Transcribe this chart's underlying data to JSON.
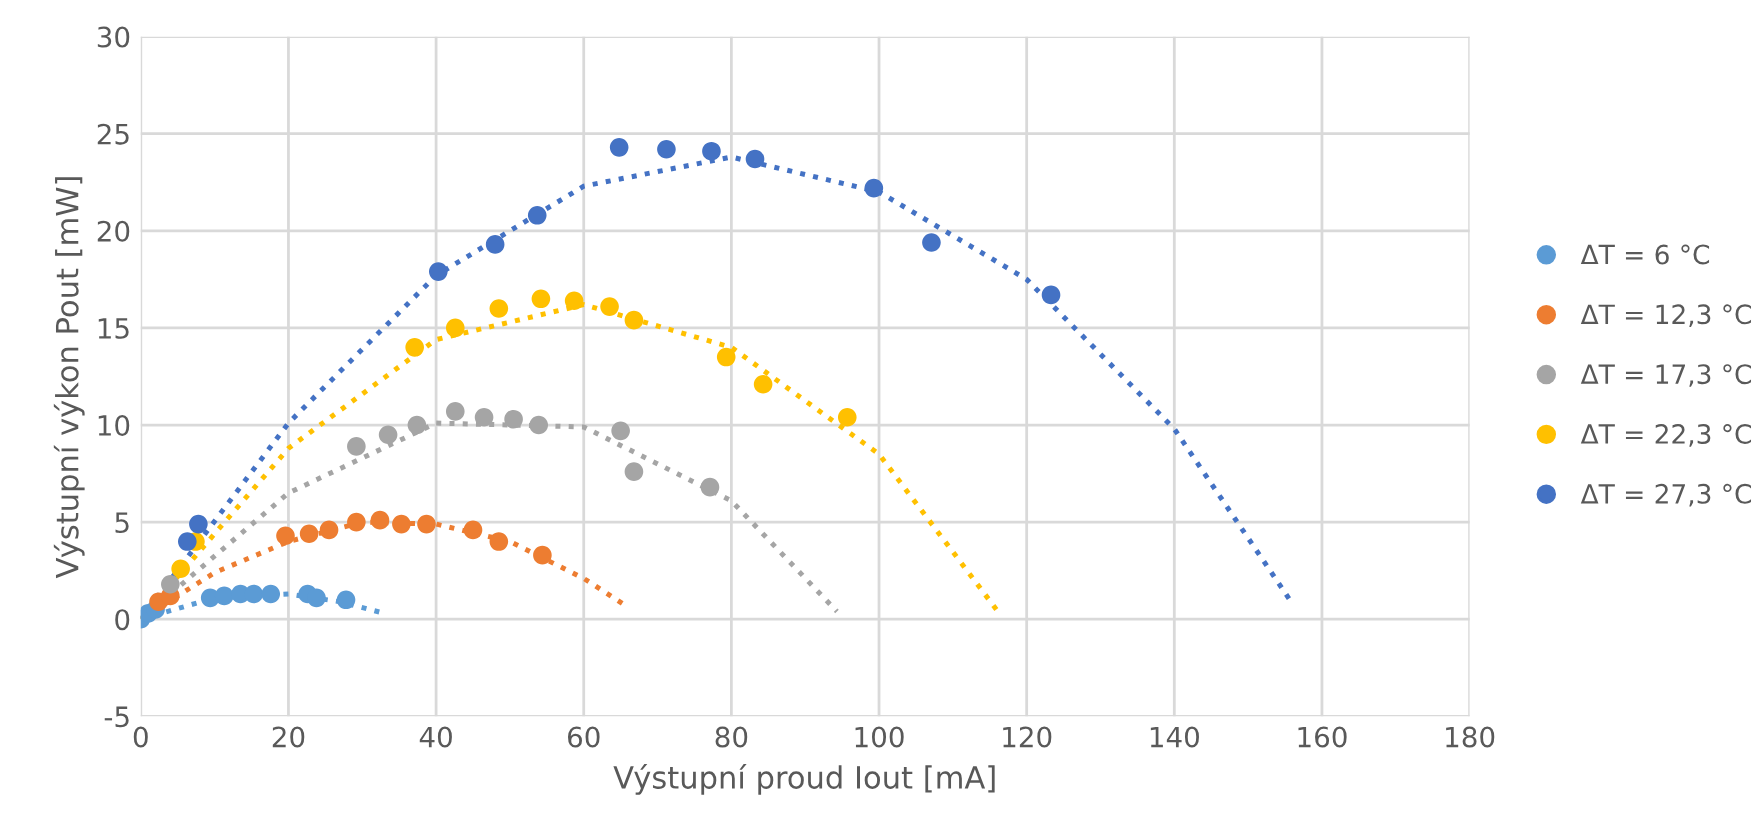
{
  "chart_data": {
    "type": "scatter",
    "xlabel": "Výstupní proud Iout [mA]",
    "ylabel": "Výstupní výkon Pout [mW]",
    "xlim": [
      0,
      180
    ],
    "xticks": [
      0,
      20,
      40,
      60,
      80,
      100,
      120,
      140,
      160,
      180
    ],
    "ylim": [
      -5,
      30
    ],
    "yticks": [
      -5,
      0,
      5,
      10,
      15,
      20,
      25,
      30
    ],
    "grid": true,
    "legend": "right",
    "marker": "circle",
    "series": [
      {
        "name": "ΔT = 6 °C",
        "color": "#5b9bd5",
        "x": [
          0,
          1,
          2,
          9.4,
          11.3,
          13.5,
          15.3,
          17.6,
          22.6,
          23.8,
          27.8
        ],
        "values": [
          0,
          0.3,
          0.5,
          1.1,
          1.2,
          1.3,
          1.3,
          1.3,
          1.3,
          1.1,
          1.0
        ]
      },
      {
        "name": "ΔT = 12,3 °C",
        "color": "#ed7d31",
        "x": [
          2.4,
          4.0,
          19.6,
          22.8,
          25.5,
          29.2,
          32.4,
          35.3,
          38.7,
          45.0,
          48.5,
          54.4
        ],
        "values": [
          0.9,
          1.2,
          4.3,
          4.4,
          4.6,
          5.0,
          5.1,
          4.9,
          4.9,
          4.6,
          4.0,
          3.3
        ]
      },
      {
        "name": "ΔT = 17,3 °C",
        "color": "#a5a5a5",
        "x": [
          4.0,
          29.2,
          33.5,
          37.4,
          42.6,
          46.5,
          50.5,
          53.9,
          65.0,
          66.8,
          77.1
        ],
        "values": [
          1.8,
          8.9,
          9.5,
          10.0,
          10.7,
          10.4,
          10.3,
          10.0,
          9.7,
          7.6,
          6.8
        ]
      },
      {
        "name": "ΔT = 22,3 °C",
        "color": "#ffc000",
        "x": [
          5.4,
          7.4,
          37.1,
          42.6,
          48.5,
          54.2,
          58.7,
          63.5,
          66.8,
          79.3,
          84.3,
          95.7
        ],
        "values": [
          2.6,
          4.0,
          14.0,
          15.0,
          16.0,
          16.5,
          16.4,
          16.1,
          15.4,
          13.5,
          12.1,
          10.4
        ]
      },
      {
        "name": "ΔT = 27,3 °C",
        "color": "#4472c4",
        "x": [
          6.3,
          7.8,
          40.3,
          48.0,
          53.7,
          64.8,
          71.2,
          77.3,
          83.2,
          99.3,
          107.1,
          123.3
        ],
        "values": [
          4.0,
          4.9,
          17.9,
          19.3,
          20.8,
          24.3,
          24.2,
          24.1,
          23.7,
          22.2,
          19.4,
          16.7
        ]
      },
      {
        "type": "line",
        "line_style": "dotted",
        "marker": "none",
        "color": "#5b9bd5",
        "x": [
          0,
          10,
          20,
          27,
          33
        ],
        "values": [
          0,
          1.1,
          1.3,
          0.9,
          0.3
        ]
      },
      {
        "type": "line",
        "line_style": "dotted",
        "marker": "none",
        "color": "#ed7d31",
        "x": [
          0,
          10,
          20,
          30,
          40,
          50,
          60,
          65.7
        ],
        "values": [
          0,
          2.4,
          4.0,
          5.0,
          4.9,
          4.0,
          2.1,
          0.7
        ]
      },
      {
        "type": "line",
        "line_style": "dotted",
        "marker": "none",
        "color": "#a5a5a5",
        "x": [
          0,
          20,
          40,
          60,
          80,
          94.3
        ],
        "values": [
          0,
          6.5,
          10.1,
          9.9,
          6.1,
          0.4
        ]
      },
      {
        "type": "line",
        "line_style": "dotted",
        "marker": "none",
        "color": "#ffc000",
        "x": [
          0,
          20,
          40,
          60,
          80,
          100,
          116.1
        ],
        "values": [
          0,
          8.8,
          14.4,
          16.2,
          14.0,
          8.5,
          0.4
        ]
      },
      {
        "type": "line",
        "line_style": "dotted",
        "marker": "none",
        "color": "#4472c4",
        "x": [
          0,
          20,
          40,
          60,
          80,
          100,
          120,
          140,
          156
        ],
        "values": [
          0,
          10.1,
          17.7,
          22.3,
          23.8,
          22.0,
          17.5,
          9.8,
          0.8
        ]
      }
    ]
  }
}
